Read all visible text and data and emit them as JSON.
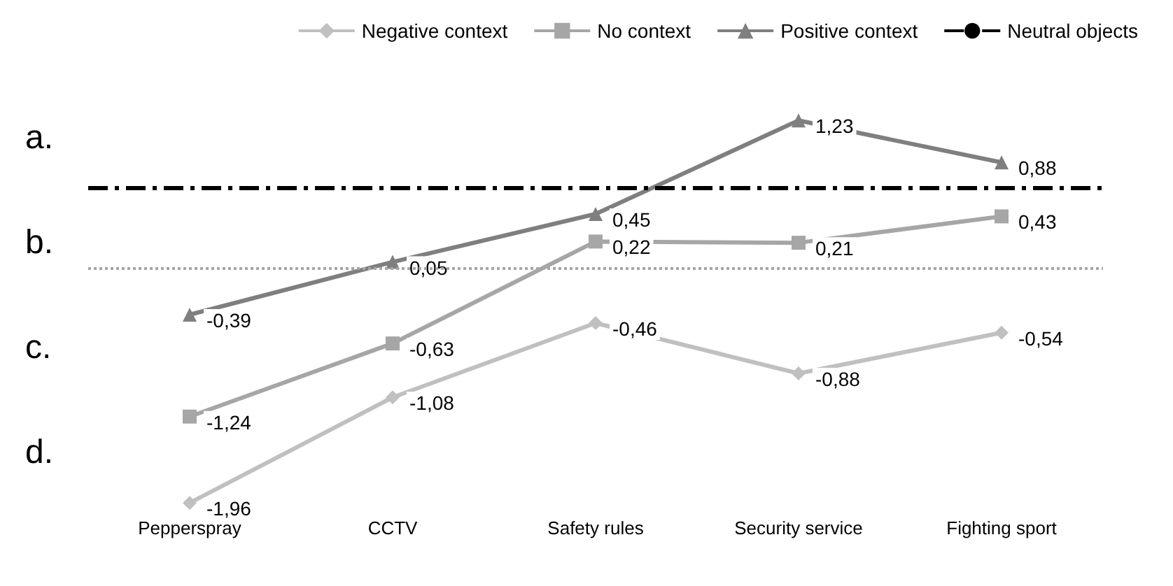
{
  "chart_data": {
    "type": "line",
    "categories": [
      "Pepperspray",
      "CCTV",
      "Safety rules",
      "Security service",
      "Fighting sport"
    ],
    "series": [
      {
        "name": "Negative context",
        "color": "#c0c0c0",
        "marker": "diamond",
        "values": [
          -1.96,
          -1.08,
          -0.46,
          -0.88,
          -0.54
        ],
        "value_labels": [
          "-1,96",
          "-1,08",
          "-0,46",
          "-0,88",
          "-0,54"
        ]
      },
      {
        "name": "No context",
        "color": "#a6a6a6",
        "marker": "square",
        "values": [
          -1.24,
          -0.63,
          0.22,
          0.21,
          0.43
        ],
        "value_labels": [
          "-1,24",
          "-0,63",
          "0,22",
          "0,21",
          "0,43"
        ]
      },
      {
        "name": "Positive context",
        "color": "#7f7f7f",
        "marker": "triangle",
        "values": [
          -0.39,
          0.05,
          0.45,
          1.23,
          0.88
        ],
        "value_labels": [
          "-0,39",
          "0,05",
          "0,45",
          "1,23",
          "0,88"
        ]
      }
    ],
    "ref_lines": [
      {
        "axis": "y",
        "value": 0.67,
        "label": "Neutral objects",
        "color": "#000000",
        "line_style": "dashed"
      },
      {
        "axis": "y",
        "value": 0,
        "label": null,
        "color": "#a6a6a6",
        "line_style": "dotted"
      }
    ],
    "annotations": [
      "a.",
      "b.",
      "c.",
      "d."
    ],
    "legend": "top right",
    "grid": false
  }
}
